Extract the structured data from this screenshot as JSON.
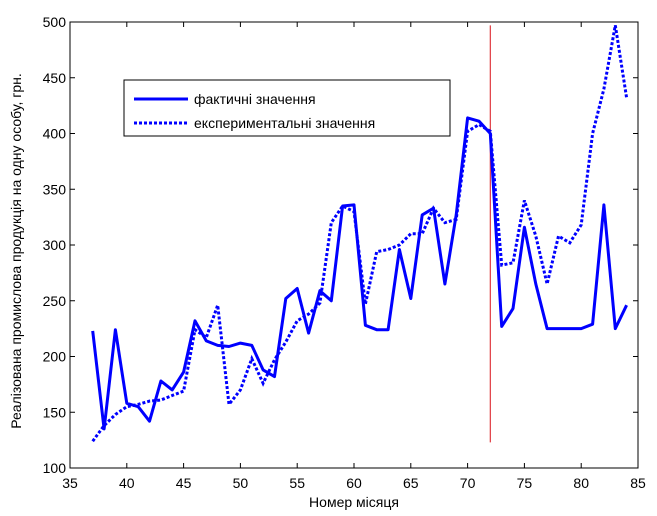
{
  "chart_data": {
    "type": "line",
    "xlabel": "Номер місяця",
    "ylabel": "Реалізована промислова продукція на одну особу, грн.",
    "xlim": [
      35,
      85
    ],
    "ylim": [
      100,
      500
    ],
    "xticks": [
      35,
      40,
      45,
      50,
      55,
      60,
      65,
      70,
      75,
      80,
      85
    ],
    "yticks": [
      100,
      150,
      200,
      250,
      300,
      350,
      400,
      450,
      500
    ],
    "legend_position": "upper-left",
    "vline": {
      "x": 72,
      "y_from": 123,
      "y_to": 497,
      "color": "#e0393e"
    },
    "series": [
      {
        "name": "фактичні значення",
        "color": "#0000ff",
        "style": "solid",
        "x": [
          37,
          38,
          39,
          40,
          41,
          42,
          43,
          44,
          45,
          46,
          47,
          48,
          49,
          50,
          51,
          52,
          53,
          54,
          55,
          56,
          57,
          58,
          59,
          60,
          61,
          62,
          63,
          64,
          65,
          66,
          67,
          68,
          69,
          70,
          71,
          72,
          73,
          74,
          75,
          76,
          77,
          78,
          79,
          80,
          81,
          82,
          83,
          84
        ],
        "values": [
          223,
          135,
          224,
          158,
          155,
          142,
          178,
          170,
          186,
          232,
          214,
          210,
          209,
          212,
          210,
          188,
          182,
          252,
          261,
          221,
          259,
          250,
          335,
          336,
          228,
          224,
          224,
          296,
          252,
          327,
          333,
          265,
          327,
          414,
          411,
          400,
          227,
          243,
          316,
          265,
          225,
          225,
          225,
          225,
          229,
          336,
          225,
          246
        ]
      },
      {
        "name": "експериментальні значення",
        "color": "#0000ff",
        "style": "dotted",
        "x": [
          37,
          38,
          39,
          40,
          41,
          42,
          43,
          44,
          45,
          46,
          47,
          48,
          49,
          50,
          51,
          52,
          53,
          54,
          55,
          56,
          57,
          58,
          59,
          60,
          61,
          62,
          63,
          64,
          65,
          66,
          67,
          68,
          69,
          70,
          71,
          72,
          73,
          74,
          75,
          76,
          77,
          78,
          79,
          80,
          81,
          82,
          83,
          84
        ],
        "values": [
          124,
          138,
          148,
          155,
          157,
          160,
          161,
          165,
          169,
          224,
          217,
          246,
          157,
          170,
          198,
          176,
          197,
          213,
          232,
          238,
          248,
          320,
          335,
          330,
          247,
          294,
          296,
          300,
          310,
          310,
          333,
          320,
          323,
          402,
          408,
          402,
          282,
          284,
          340,
          308,
          265,
          308,
          302,
          318,
          400,
          440,
          497,
          432
        ]
      }
    ]
  }
}
